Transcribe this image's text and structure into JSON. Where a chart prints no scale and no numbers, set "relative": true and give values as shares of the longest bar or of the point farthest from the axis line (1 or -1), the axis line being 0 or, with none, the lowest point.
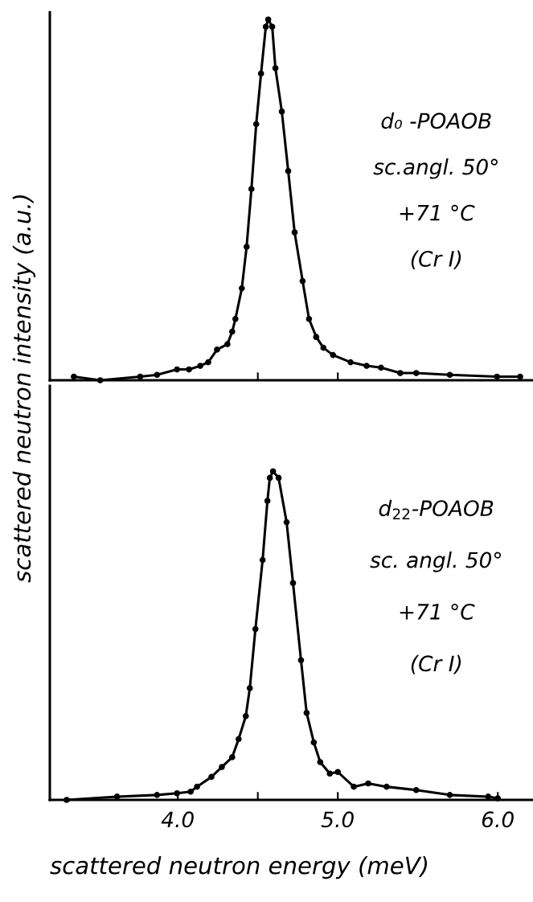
{
  "chart_data": [
    {
      "type": "line",
      "relative": true,
      "marker": "circle",
      "line_style": "solid",
      "ylabel": "scattered neutron intensity (a.u.)",
      "xlim": [
        3.2,
        6.22
      ],
      "xticks": [
        {
          "value": 4.5,
          "label": null
        },
        {
          "value": 5.0,
          "label": null
        }
      ],
      "tick_labels": false,
      "annotations": [
        "d₀ -POAOB",
        "sc.angl. 50°",
        "+71 °C",
        "(Cr I)"
      ],
      "series": [
        {
          "color": "#000000",
          "x": [
            3.35,
            3.515,
            3.765,
            3.87,
            3.995,
            4.07,
            4.14,
            4.19,
            4.245,
            4.31,
            4.34,
            4.36,
            4.4,
            4.43,
            4.46,
            4.49,
            4.52,
            4.55,
            4.565,
            4.59,
            4.61,
            4.65,
            4.69,
            4.73,
            4.78,
            4.82,
            4.865,
            4.91,
            4.97,
            5.08,
            5.18,
            5.27,
            5.39,
            5.49,
            5.7,
            5.995,
            6.14
          ],
          "values": [
            0.01,
            0.0,
            0.01,
            0.015,
            0.03,
            0.03,
            0.04,
            0.05,
            0.085,
            0.1,
            0.135,
            0.17,
            0.255,
            0.37,
            0.53,
            0.71,
            0.85,
            0.98,
            1.0,
            0.98,
            0.865,
            0.745,
            0.58,
            0.41,
            0.275,
            0.17,
            0.12,
            0.09,
            0.07,
            0.05,
            0.04,
            0.035,
            0.02,
            0.02,
            0.015,
            0.01,
            0.01
          ]
        }
      ]
    },
    {
      "type": "line",
      "relative": true,
      "marker": "circle",
      "line_style": "solid",
      "xlabel": "scattered neutron energy (meV)",
      "xlim": [
        3.2,
        6.22
      ],
      "xticks": [
        {
          "value": 4.0,
          "label": "4.0"
        },
        {
          "value": 4.5,
          "label": null
        },
        {
          "value": 5.0,
          "label": "5.0"
        },
        {
          "value": 6.0,
          "label": "6.0"
        }
      ],
      "tick_labels": "x",
      "annotations": [
        "d$_{22}$-POAOB",
        "sc. angl. 50°",
        "+71 °C",
        "(Cr I)"
      ],
      "series": [
        {
          "color": "#000000",
          "x": [
            3.305,
            3.62,
            3.87,
            3.995,
            4.08,
            4.12,
            4.21,
            4.275,
            4.34,
            4.38,
            4.425,
            4.45,
            4.485,
            4.53,
            4.56,
            4.575,
            4.595,
            4.63,
            4.68,
            4.72,
            4.77,
            4.805,
            4.85,
            4.89,
            4.95,
            5.0,
            5.1,
            5.19,
            5.305,
            5.49,
            5.7,
            5.94,
            6.0
          ],
          "values": [
            0.0,
            0.01,
            0.015,
            0.02,
            0.025,
            0.04,
            0.07,
            0.1,
            0.13,
            0.185,
            0.255,
            0.34,
            0.52,
            0.73,
            0.91,
            0.98,
            1.0,
            0.98,
            0.845,
            0.66,
            0.425,
            0.265,
            0.175,
            0.115,
            0.08,
            0.085,
            0.04,
            0.05,
            0.04,
            0.03,
            0.015,
            0.01,
            0.005
          ]
        }
      ]
    }
  ]
}
